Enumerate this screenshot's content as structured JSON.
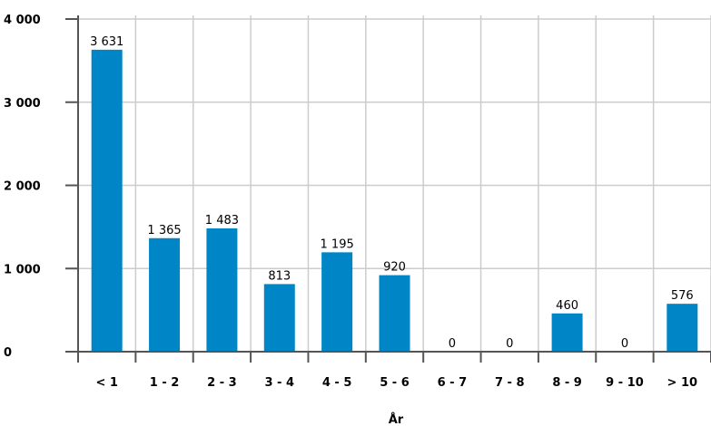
{
  "chart_data": {
    "type": "bar",
    "title": "",
    "xlabel": "År",
    "ylabel": "",
    "categories": [
      "< 1",
      "1 - 2",
      "2 - 3",
      "3 - 4",
      "4 - 5",
      "5 - 6",
      "6 - 7",
      "7 - 8",
      "8 - 9",
      "9 - 10",
      "> 10"
    ],
    "values": [
      3631,
      1365,
      1483,
      813,
      1195,
      920,
      0,
      0,
      460,
      0,
      576
    ],
    "value_labels": [
      "3 631",
      "1 365",
      "1 483",
      "813",
      "1 195",
      "920",
      "0",
      "0",
      "460",
      "0",
      "576"
    ],
    "ylim": [
      0,
      4000
    ],
    "yticks": [
      0,
      1000,
      2000,
      3000,
      4000
    ],
    "ytick_labels": [
      "0",
      "1 000",
      "2 000",
      "3 000",
      "4 000"
    ],
    "grid": true,
    "legend": "none",
    "bar_color": "#0086c6",
    "grid_color": "#cccccc",
    "axis_color": "#555555"
  }
}
